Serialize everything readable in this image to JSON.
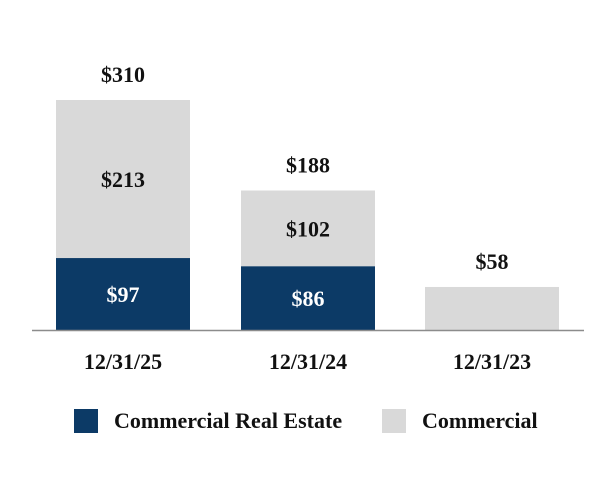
{
  "chart_data": {
    "type": "bar",
    "stacked": true,
    "categories": [
      "12/31/25",
      "12/31/24",
      "12/31/23"
    ],
    "series": [
      {
        "name": "Commercial Real Estate",
        "values": [
          97,
          86,
          0
        ],
        "labels": [
          "$97",
          "$86",
          ""
        ]
      },
      {
        "name": "Commercial",
        "values": [
          213,
          102,
          58
        ],
        "labels": [
          "$213",
          "$102",
          ""
        ]
      }
    ],
    "totals": [
      310,
      188,
      58
    ],
    "total_labels": [
      "$310",
      "$188",
      "$58"
    ],
    "title": "",
    "xlabel": "",
    "ylabel": "",
    "ylim": [
      0,
      310
    ],
    "grid": false,
    "legend_position": "bottom"
  },
  "colors": {
    "commercial_real_estate": "#0c3a66",
    "commercial": "#d9d9d9",
    "axis": "#8c8c8c",
    "label_dark": "#111111",
    "label_light": "#ffffff"
  },
  "legend": {
    "items": [
      "Commercial Real Estate",
      "Commercial"
    ]
  }
}
